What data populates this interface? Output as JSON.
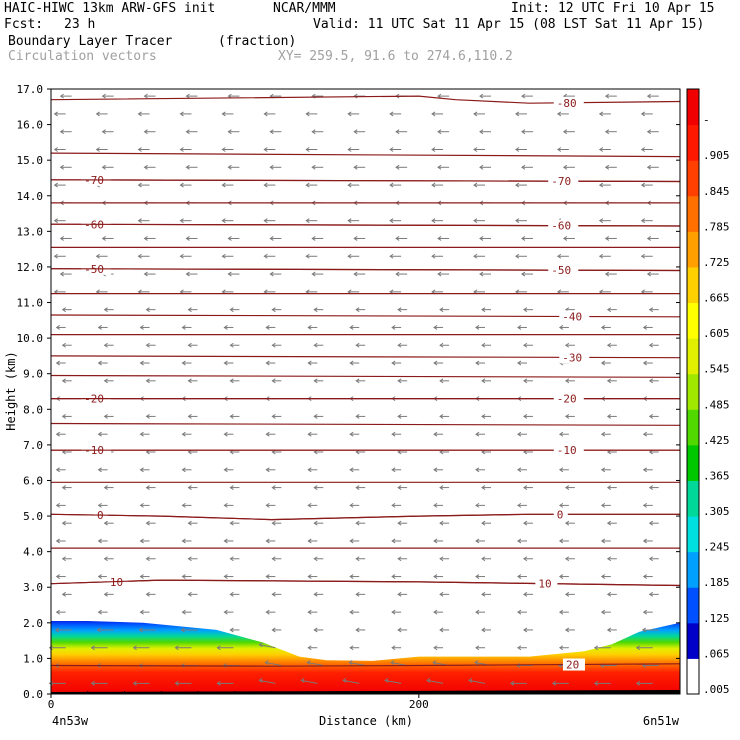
{
  "header": {
    "title": "HAIC-HIWC 13km ARW-GFS init",
    "org": "NCAR/MMM",
    "init": "Init: 12 UTC Fri 10 Apr 15",
    "fcst_label": "Fcst:",
    "fcst_value": "23 h",
    "valid": "Valid: 11 UTC Sat 11 Apr 15 (08 LST Sat 11 Apr 15)",
    "field_name": "Boundary Layer Tracer",
    "field_units": "(fraction)",
    "vector_label": "Circulation vectors",
    "xy_label": "XY= 259.5, 91.6 to 274.6,110.2"
  },
  "chart_data": {
    "type": "heatmap",
    "xlabel": "Distance (km)",
    "ylabel": "Height (km)",
    "xlim": [
      0,
      342
    ],
    "ylim": [
      0,
      17
    ],
    "x_ticks": [
      "0",
      "200"
    ],
    "x_tick_values": [
      0,
      200
    ],
    "y_ticks": [
      "0.0",
      "1.0",
      "2.0",
      "3.0",
      "4.0",
      "5.0",
      "6.0",
      "7.0",
      "8.0",
      "9.0",
      "10.0",
      "11.0",
      "12.0",
      "13.0",
      "14.0",
      "15.0",
      "16.0",
      "17.0"
    ],
    "y_tick_values": [
      0,
      1,
      2,
      3,
      4,
      5,
      6,
      7,
      8,
      9,
      10,
      11,
      12,
      13,
      14,
      15,
      16,
      17
    ],
    "x_endpoint_left": "4n53w",
    "x_endpoint_right": "6n51w",
    "colorbar": {
      "labels": [
        ".005",
        ".065",
        ".125",
        ".185",
        ".245",
        ".305",
        ".365",
        ".425",
        ".485",
        ".545",
        ".605",
        ".665",
        ".725",
        ".785",
        ".845",
        ".905",
        "-"
      ],
      "colors": [
        "#ffffff",
        "#0000c8",
        "#0050ff",
        "#00a0ff",
        "#00e0e0",
        "#00d89a",
        "#00c800",
        "#50d800",
        "#a0e800",
        "#e0f000",
        "#ffff00",
        "#ffd000",
        "#ffa000",
        "#ff7000",
        "#ff4000",
        "#ff1800",
        "#f00000"
      ]
    },
    "tracer_top_km": [
      [
        0,
        2.05
      ],
      [
        20,
        2.05
      ],
      [
        50,
        2.0
      ],
      [
        90,
        1.8
      ],
      [
        115,
        1.45
      ],
      [
        135,
        1.05
      ],
      [
        150,
        0.95
      ],
      [
        175,
        0.93
      ],
      [
        200,
        1.05
      ],
      [
        230,
        1.05
      ],
      [
        260,
        1.05
      ],
      [
        290,
        1.2
      ],
      [
        305,
        1.4
      ],
      [
        320,
        1.75
      ],
      [
        342,
        2.0
      ]
    ],
    "temperature_contours": [
      {
        "label": "-80",
        "x": [
          0,
          200,
          220,
          260,
          342
        ],
        "y": [
          16.7,
          16.8,
          16.7,
          16.6,
          16.65
        ],
        "label_x": 275
      },
      {
        "label": "",
        "x": [
          0,
          342
        ],
        "y": [
          15.2,
          15.1
        ],
        "label_x": null
      },
      {
        "label": "-70",
        "x": [
          0,
          342
        ],
        "y": [
          14.45,
          14.4
        ],
        "label_x": 18
      },
      {
        "label": "-70",
        "x": [
          0,
          342
        ],
        "y": [
          14.45,
          14.4
        ],
        "label_x": 272
      },
      {
        "label": "",
        "x": [
          0,
          342
        ],
        "y": [
          13.8,
          13.8
        ],
        "label_x": null
      },
      {
        "label": "-60",
        "x": [
          0,
          342
        ],
        "y": [
          13.2,
          13.15
        ],
        "label_x": 18
      },
      {
        "label": "-60",
        "x": [
          0,
          342
        ],
        "y": [
          13.2,
          13.15
        ],
        "label_x": 272
      },
      {
        "label": "",
        "x": [
          0,
          342
        ],
        "y": [
          12.55,
          12.55
        ],
        "label_x": null
      },
      {
        "label": "-50",
        "x": [
          0,
          342
        ],
        "y": [
          11.95,
          11.9
        ],
        "label_x": 18
      },
      {
        "label": "-50",
        "x": [
          0,
          342
        ],
        "y": [
          11.95,
          11.9
        ],
        "label_x": 272
      },
      {
        "label": "",
        "x": [
          0,
          342
        ],
        "y": [
          11.25,
          11.25
        ],
        "label_x": null
      },
      {
        "label": "-40",
        "x": [
          0,
          342
        ],
        "y": [
          10.65,
          10.6
        ],
        "label_x": 278
      },
      {
        "label": "",
        "x": [
          0,
          342
        ],
        "y": [
          10.1,
          10.1
        ],
        "label_x": null
      },
      {
        "label": "-30",
        "x": [
          0,
          342
        ],
        "y": [
          9.5,
          9.45
        ],
        "label_x": 278
      },
      {
        "label": "",
        "x": [
          0,
          342
        ],
        "y": [
          8.95,
          8.9
        ],
        "label_x": null
      },
      {
        "label": "-20",
        "x": [
          0,
          342
        ],
        "y": [
          8.3,
          8.3
        ],
        "label_x": 18
      },
      {
        "label": "-20",
        "x": [
          0,
          342
        ],
        "y": [
          8.3,
          8.3
        ],
        "label_x": 275
      },
      {
        "label": "",
        "x": [
          0,
          342
        ],
        "y": [
          7.6,
          7.55
        ],
        "label_x": null
      },
      {
        "label": "-10",
        "x": [
          0,
          342
        ],
        "y": [
          6.85,
          6.85
        ],
        "label_x": 18
      },
      {
        "label": "-10",
        "x": [
          0,
          342
        ],
        "y": [
          6.85,
          6.85
        ],
        "label_x": 275
      },
      {
        "label": "",
        "x": [
          0,
          342
        ],
        "y": [
          5.95,
          5.95
        ],
        "label_x": null
      },
      {
        "label": "0",
        "x": [
          0,
          60,
          120,
          200,
          260,
          342
        ],
        "y": [
          5.05,
          5.0,
          4.9,
          5.0,
          5.05,
          5.05
        ],
        "label_x": 25
      },
      {
        "label": "0",
        "x": [
          0,
          60,
          120,
          200,
          260,
          342
        ],
        "y": [
          5.05,
          5.0,
          4.9,
          5.0,
          5.05,
          5.05
        ],
        "label_x": 275
      },
      {
        "label": "",
        "x": [
          0,
          342
        ],
        "y": [
          4.1,
          4.1
        ],
        "label_x": null
      },
      {
        "label": "10",
        "x": [
          0,
          60,
          200,
          342
        ],
        "y": [
          3.1,
          3.2,
          3.15,
          3.05
        ],
        "label_x": 32
      },
      {
        "label": "10",
        "x": [
          0,
          60,
          200,
          342
        ],
        "y": [
          3.1,
          3.2,
          3.15,
          3.05
        ],
        "label_x": 265
      },
      {
        "label": "20",
        "x": [
          0,
          120,
          200,
          342
        ],
        "y": [
          0.8,
          0.78,
          0.8,
          0.85
        ],
        "label_x": 280
      }
    ]
  }
}
